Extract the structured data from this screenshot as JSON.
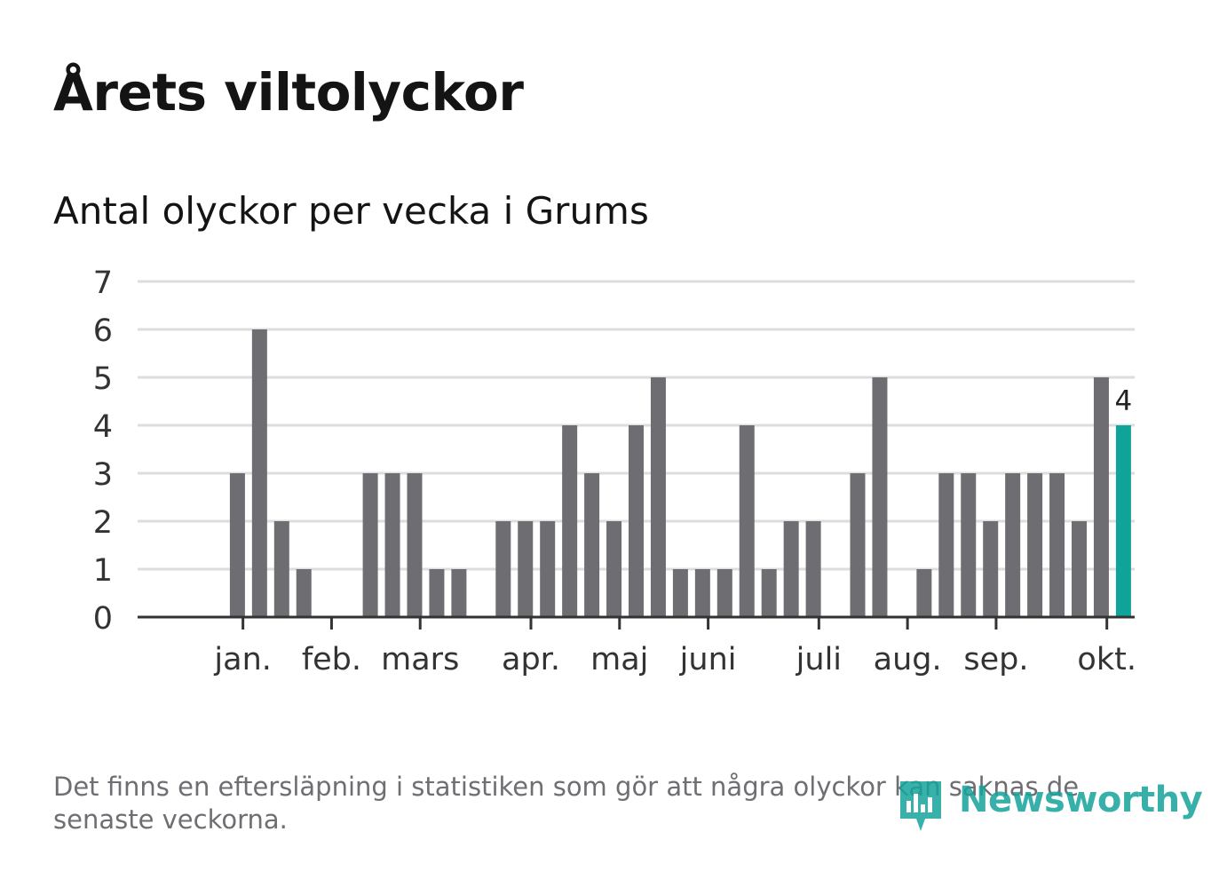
{
  "title": "Årets viltolyckor",
  "subtitle": "Antal olyckor per vecka i Grums",
  "footnote": "Det finns en eftersläpning i statistiken som gör att några olyckor kan saknas de senaste veckorna.",
  "brand": {
    "name": "Newsworthy",
    "icon": "newsworthy-logo-icon",
    "color": "#14a39a"
  },
  "colors": {
    "bar": "#6e6d72",
    "highlight": "#0fa39a",
    "grid": "#dddddd",
    "axis": "#333333",
    "text": "#333333"
  },
  "chart_data": {
    "type": "bar",
    "title": "Antal olyckor per vecka i Grums",
    "xlabel": "",
    "ylabel": "",
    "ylim": [
      0,
      7
    ],
    "yticks": [
      "0",
      "1",
      "2",
      "3",
      "4",
      "5",
      "6",
      "7"
    ],
    "week_slots": 43,
    "values": [
      null,
      null,
      3,
      6,
      2,
      1,
      null,
      null,
      3,
      3,
      3,
      1,
      1,
      null,
      2,
      2,
      2,
      4,
      3,
      2,
      4,
      5,
      1,
      1,
      1,
      4,
      1,
      2,
      2,
      null,
      3,
      5,
      null,
      1,
      3,
      3,
      2,
      3,
      3,
      3,
      2,
      5,
      4
    ],
    "highlight_index": 42,
    "highlight_label": "4",
    "month_ticks": [
      {
        "label": "jan.",
        "slot": 2.25
      },
      {
        "label": "feb.",
        "slot": 6.25
      },
      {
        "label": "mars",
        "slot": 10.25
      },
      {
        "label": "apr.",
        "slot": 15.25
      },
      {
        "label": "maj",
        "slot": 19.25
      },
      {
        "label": "juni",
        "slot": 23.25
      },
      {
        "label": "juli",
        "slot": 28.25
      },
      {
        "label": "aug.",
        "slot": 32.25
      },
      {
        "label": "sep.",
        "slot": 36.25
      },
      {
        "label": "okt.",
        "slot": 41.25
      }
    ],
    "grid": true,
    "legend": "none"
  }
}
